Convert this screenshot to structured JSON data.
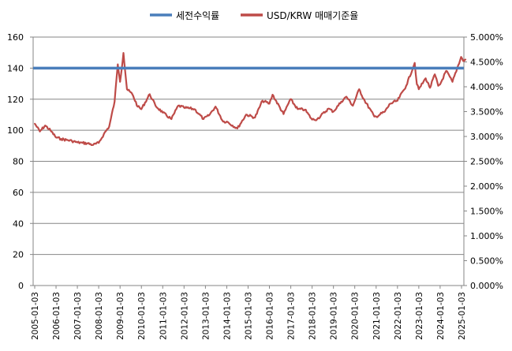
{
  "chart_data": {
    "type": "line",
    "legend_position": "top",
    "grid": true,
    "x_ticks": [
      "2005-01-03",
      "2006-01-03",
      "2007-01-03",
      "2008-01-03",
      "2009-01-03",
      "2010-01-03",
      "2011-01-03",
      "2012-01-03",
      "2013-01-03",
      "2014-01-03",
      "2015-01-03",
      "2016-01-03",
      "2017-01-03",
      "2018-01-03",
      "2019-01-03",
      "2020-01-03",
      "2021-01-03",
      "2022-01-03",
      "2023-01-03",
      "2024-01-03",
      "2025-01-03"
    ],
    "y_left": {
      "ticks": [
        "0",
        "20",
        "40",
        "60",
        "80",
        "100",
        "120",
        "140",
        "160"
      ],
      "ylim": [
        0,
        160
      ]
    },
    "y_right": {
      "ticks": [
        "0.000%",
        "0.500%",
        "1.000%",
        "1.500%",
        "2.000%",
        "2.500%",
        "3.000%",
        "3.500%",
        "4.000%",
        "4.500%",
        "5.000%"
      ],
      "ylim": [
        0,
        5
      ]
    },
    "series": [
      {
        "name": "세전수익률",
        "axis": "left",
        "color": "#4a7ebb",
        "values": [
          140,
          140
        ]
      },
      {
        "name": "USD/KRW 매매기준율",
        "axis": "right",
        "color": "#be4b48",
        "points": [
          [
            "2005-01-03",
            3.26
          ],
          [
            "2005-04-01",
            3.1
          ],
          [
            "2005-07-01",
            3.22
          ],
          [
            "2005-10-01",
            3.12
          ],
          [
            "2006-01-03",
            2.98
          ],
          [
            "2006-04-01",
            2.95
          ],
          [
            "2006-07-01",
            2.93
          ],
          [
            "2006-10-01",
            2.91
          ],
          [
            "2007-01-03",
            2.88
          ],
          [
            "2007-04-01",
            2.87
          ],
          [
            "2007-07-01",
            2.86
          ],
          [
            "2007-10-01",
            2.83
          ],
          [
            "2008-01-03",
            2.87
          ],
          [
            "2008-04-01",
            3.05
          ],
          [
            "2008-07-01",
            3.2
          ],
          [
            "2008-10-01",
            3.7
          ],
          [
            "2008-11-25",
            4.45
          ],
          [
            "2009-01-03",
            4.1
          ],
          [
            "2009-03-02",
            4.68
          ],
          [
            "2009-05-01",
            3.95
          ],
          [
            "2009-08-01",
            3.85
          ],
          [
            "2009-11-01",
            3.6
          ],
          [
            "2010-01-03",
            3.55
          ],
          [
            "2010-05-25",
            3.85
          ],
          [
            "2010-09-01",
            3.62
          ],
          [
            "2011-01-03",
            3.48
          ],
          [
            "2011-06-01",
            3.35
          ],
          [
            "2011-09-26",
            3.62
          ],
          [
            "2012-01-03",
            3.58
          ],
          [
            "2012-07-01",
            3.55
          ],
          [
            "2012-12-01",
            3.35
          ],
          [
            "2013-03-01",
            3.42
          ],
          [
            "2013-06-25",
            3.6
          ],
          [
            "2013-11-01",
            3.3
          ],
          [
            "2014-01-03",
            3.3
          ],
          [
            "2014-07-03",
            3.16
          ],
          [
            "2014-12-01",
            3.44
          ],
          [
            "2015-05-01",
            3.38
          ],
          [
            "2015-09-07",
            3.72
          ],
          [
            "2016-01-03",
            3.66
          ],
          [
            "2016-02-26",
            3.84
          ],
          [
            "2016-09-01",
            3.45
          ],
          [
            "2016-12-28",
            3.75
          ],
          [
            "2017-05-01",
            3.55
          ],
          [
            "2017-09-01",
            3.54
          ],
          [
            "2018-01-03",
            3.34
          ],
          [
            "2018-04-01",
            3.35
          ],
          [
            "2018-10-11",
            3.56
          ],
          [
            "2019-01-03",
            3.5
          ],
          [
            "2019-05-17",
            3.7
          ],
          [
            "2019-08-13",
            3.8
          ],
          [
            "2019-12-01",
            3.62
          ],
          [
            "2020-03-19",
            3.95
          ],
          [
            "2020-06-01",
            3.76
          ],
          [
            "2020-12-03",
            3.4
          ],
          [
            "2021-01-03",
            3.4
          ],
          [
            "2021-06-01",
            3.5
          ],
          [
            "2021-09-01",
            3.66
          ],
          [
            "2022-01-03",
            3.72
          ],
          [
            "2022-06-01",
            4.02
          ],
          [
            "2022-10-25",
            4.48
          ],
          [
            "2022-12-01",
            4.05
          ],
          [
            "2023-01-03",
            3.95
          ],
          [
            "2023-05-01",
            4.17
          ],
          [
            "2023-07-14",
            3.98
          ],
          [
            "2023-10-04",
            4.25
          ],
          [
            "2023-12-01",
            4.02
          ],
          [
            "2024-01-03",
            4.05
          ],
          [
            "2024-04-16",
            4.32
          ],
          [
            "2024-08-01",
            4.1
          ],
          [
            "2024-12-27",
            4.6
          ],
          [
            "2025-02-01",
            4.52
          ],
          [
            "2025-03-15",
            4.55
          ]
        ]
      }
    ]
  }
}
